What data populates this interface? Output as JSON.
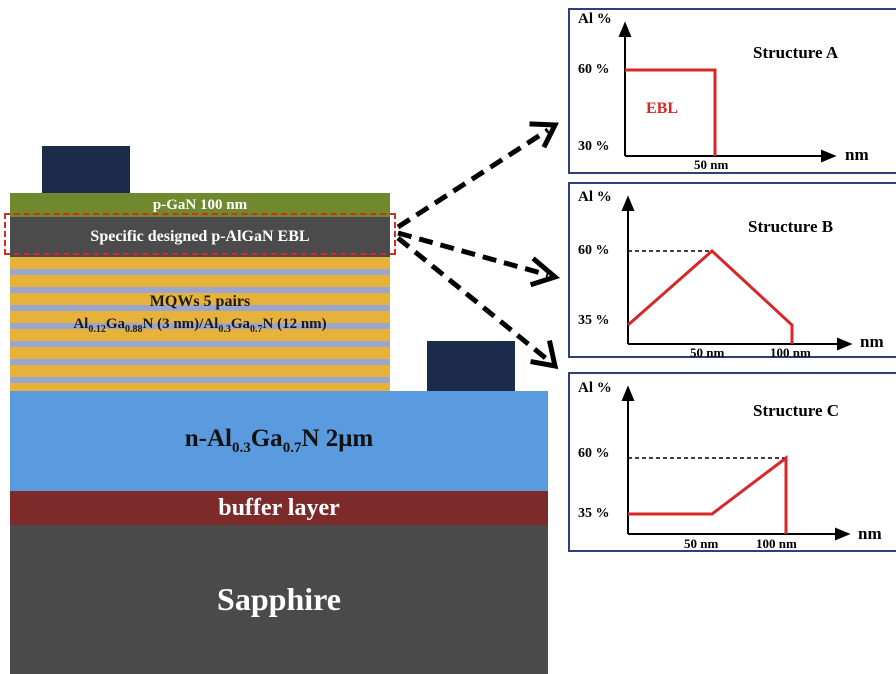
{
  "stack": {
    "pgan": "p-GaN 100 nm",
    "ebl": "Specific designed p-AlGaN EBL",
    "mqw_title": "MQWs 5 pairs",
    "mqw_formula": {
      "p1": "Al",
      "s1": "0.12",
      "p2": "Ga",
      "s2": "0.88",
      "p3": "N (3 nm)/Al",
      "s3": "0.3",
      "p4": "Ga",
      "s4": "0.7",
      "p5": "N (12 nm)"
    },
    "nlayer": {
      "p1": "n-Al",
      "s1": "0.3",
      "p2": "Ga",
      "s2": "0.7",
      "p3": "N 2μm"
    },
    "buffer": "buffer layer",
    "sapphire": "Sapphire"
  },
  "panels": {
    "a": {
      "ylabel": "Al %",
      "xlabel": "nm",
      "title": "Structure A",
      "y_hi": "60 %",
      "y_lo": "30 %",
      "x1": "50 nm",
      "ebl": "EBL"
    },
    "b": {
      "ylabel": "Al %",
      "xlabel": "nm",
      "title": "Structure B",
      "y_hi": "60 %",
      "y_lo": "35 %",
      "x1": "50 nm",
      "x2": "100 nm"
    },
    "c": {
      "ylabel": "Al %",
      "xlabel": "nm",
      "title": "Structure C",
      "y_hi": "60 %",
      "y_lo": "35 %",
      "x1": "50 nm",
      "x2": "100 nm"
    }
  },
  "colors": {
    "pgan": "#70892f",
    "ebl": "#4b4b4b",
    "mqw_gold": "#e6b23a",
    "mqw_blue": "#9aa6cf",
    "nlayer": "#5a9be0",
    "buffer": "#7d2a2a",
    "sapphire": "#4a4a4a",
    "contact": "#1c2b4a",
    "profile": "#d62828",
    "panel_border": "#2f3f7a"
  }
}
